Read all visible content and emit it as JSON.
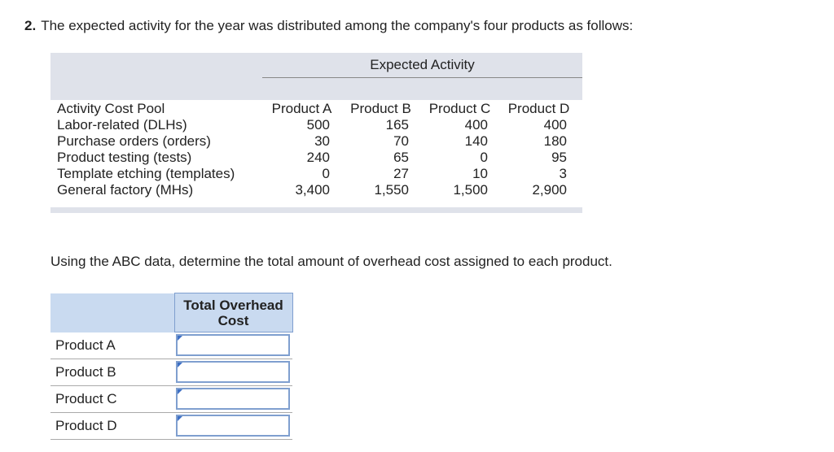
{
  "question": {
    "number": "2.",
    "text": "The expected activity for the year was distributed among the company's four products as follows:"
  },
  "activity_table": {
    "group_header": "Expected Activity",
    "columns": [
      "Activity Cost Pool",
      "Product A",
      "Product B",
      "Product C",
      "Product D"
    ],
    "rows": [
      [
        "Labor-related (DLHs)",
        "500",
        "165",
        "400",
        "400"
      ],
      [
        "Purchase orders (orders)",
        "30",
        "70",
        "140",
        "180"
      ],
      [
        "Product testing (tests)",
        "240",
        "65",
        "0",
        "95"
      ],
      [
        "Template etching (templates)",
        "0",
        "27",
        "10",
        "3"
      ],
      [
        "General factory (MHs)",
        "3,400",
        "1,550",
        "1,500",
        "2,900"
      ]
    ]
  },
  "instruction": "Using the ABC data, determine the total amount of overhead cost assigned to each product.",
  "answer_table": {
    "header": "Total Overhead Cost",
    "rows": [
      "Product A",
      "Product B",
      "Product C",
      "Product D"
    ]
  }
}
